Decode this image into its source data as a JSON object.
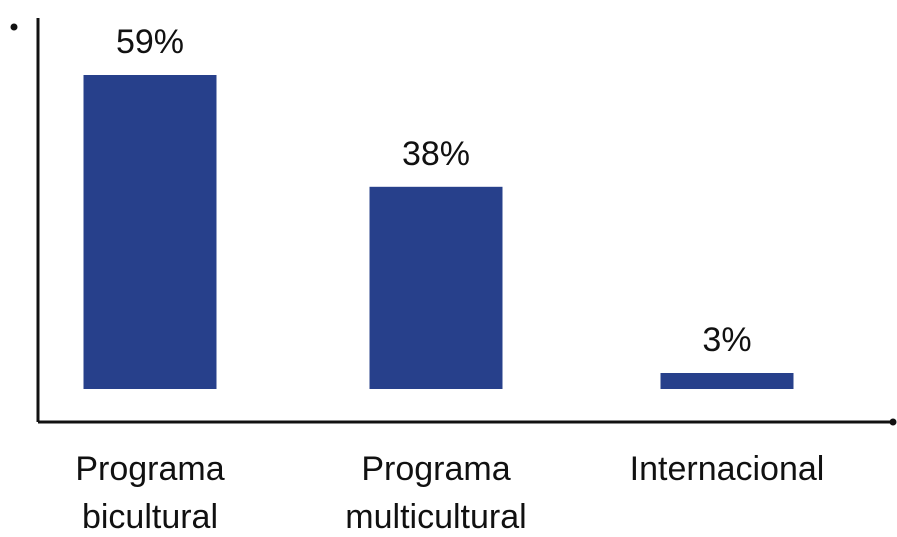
{
  "chart_data": {
    "type": "bar",
    "categories": [
      [
        "Programa",
        "bicultural"
      ],
      [
        "Programa",
        "multicultural"
      ],
      [
        "Internacional"
      ]
    ],
    "values": [
      59,
      38,
      3
    ],
    "value_labels": [
      "59%",
      "38%",
      "3%"
    ],
    "unit": "%",
    "title": "",
    "xlabel": "",
    "ylabel": "",
    "ylim": [
      0,
      60
    ],
    "grid": false,
    "legend": "none",
    "bar_color": "#27408b",
    "axis_color": "#111111"
  }
}
